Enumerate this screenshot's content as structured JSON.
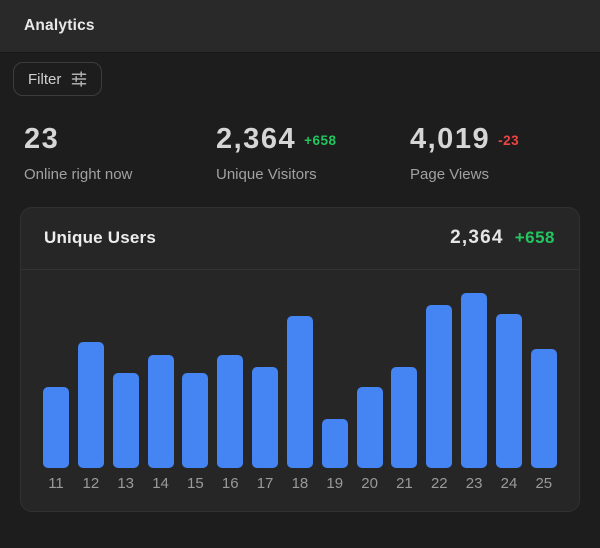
{
  "header": {
    "title": "Analytics"
  },
  "toolbar": {
    "filter_label": "Filter",
    "filter_icon": "sliders-icon"
  },
  "stats": [
    {
      "value": "23",
      "delta": "",
      "trend": "none",
      "label": "Online right now"
    },
    {
      "value": "2,364",
      "delta": "+658",
      "trend": "positive",
      "label": "Unique Visitors"
    },
    {
      "value": "4,019",
      "delta": "-23",
      "trend": "negative",
      "label": "Page Views"
    }
  ],
  "card": {
    "title": "Unique Users",
    "value": "2,364",
    "delta": "+658",
    "trend": "positive"
  },
  "colors": {
    "bar": "#4484f3",
    "positive": "#22c55e",
    "negative": "#ef4444"
  },
  "chart_data": {
    "type": "bar",
    "title": "Unique Users",
    "categories": [
      "11",
      "12",
      "13",
      "14",
      "15",
      "16",
      "17",
      "18",
      "19",
      "20",
      "21",
      "22",
      "23",
      "24",
      "25"
    ],
    "values": [
      81,
      126,
      95,
      113,
      95,
      113,
      101,
      152,
      49,
      81,
      101,
      163,
      175,
      154,
      119
    ],
    "value_unit": "relative-bar-height-px",
    "xlabel": "",
    "ylabel": "",
    "ylim": [
      0,
      198
    ],
    "grid": false,
    "legend": false,
    "y_axis_labeled": false
  }
}
